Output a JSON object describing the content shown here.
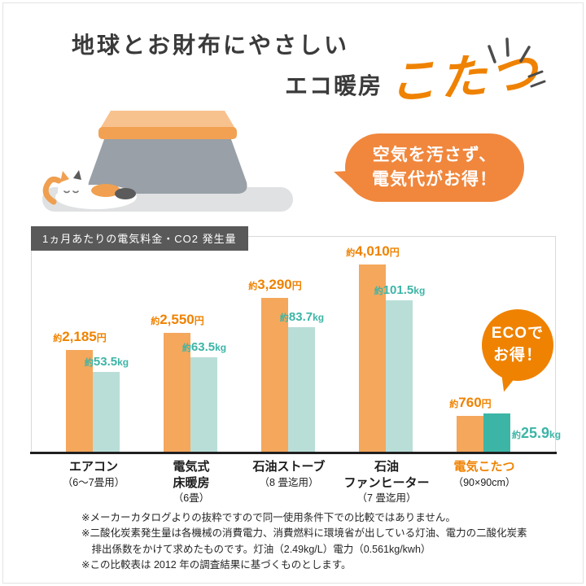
{
  "palette": {
    "orange_accent": "#ef8200",
    "orange_bubble": "#f0873d",
    "orange_bar": "#f5a75c",
    "teal_bar": "#b9ded8",
    "teal_dark": "#3cb5a6",
    "ink": "#3a3a3a",
    "box_gray": "#595959"
  },
  "header": {
    "title": "地球とお財布にやさしい",
    "subtitle_prefix": "エコ暖房",
    "subtitle_highlight": "こたつ"
  },
  "bubble": {
    "lines": [
      "空気を汚さず、",
      "電気代がお得！"
    ]
  },
  "eco_badge": {
    "lines": [
      "ECOで",
      "お得！"
    ]
  },
  "chart_data": {
    "type": "bar",
    "title": "1ヵ月あたりの電気料金・CO2 発生量",
    "legend": "none",
    "grid": false,
    "categories": [
      {
        "lines": [
          "エアコン",
          "（6～7畳用）"
        ],
        "highlight": false
      },
      {
        "lines": [
          "電気式",
          "床暖房",
          "（6畳）"
        ],
        "highlight": false
      },
      {
        "lines": [
          "石油ストーブ",
          "（8 畳迄用）"
        ],
        "highlight": false
      },
      {
        "lines": [
          "石油",
          "ファンヒーター",
          "（7 畳迄用）"
        ],
        "highlight": false
      },
      {
        "lines": [
          "電気こたつ",
          "（90×90cm）"
        ],
        "highlight": true
      }
    ],
    "series": [
      {
        "name": "電気料金",
        "unit": "円",
        "prefix": "約",
        "values": [
          2185,
          2550,
          3290,
          4010,
          760
        ],
        "display": [
          "2,185",
          "2,550",
          "3,290",
          "4,010",
          "760"
        ],
        "ylim": [
          0,
          4010
        ]
      },
      {
        "name": "CO2発生量",
        "unit": "kg",
        "prefix": "約",
        "values": [
          53.5,
          63.5,
          83.7,
          101.5,
          25.9
        ],
        "display": [
          "53.5",
          "63.5",
          "83.7",
          "101.5",
          "25.9"
        ],
        "ylim": [
          0,
          101.5
        ]
      }
    ]
  },
  "footnotes": [
    "※メーカーカタログよりの抜粋ですので同一使用条件下での比較ではありません。",
    "※二酸化炭素発生量は各機械の消費電力、消費燃料に環境省が出している灯油、電力の二酸化炭素排出係数をかけて求めたものです。灯油（2.49kg/L）電力（0.561kg/kwh）",
    "※この比較表は 2012 年の調査結果に基づくものとします。"
  ]
}
